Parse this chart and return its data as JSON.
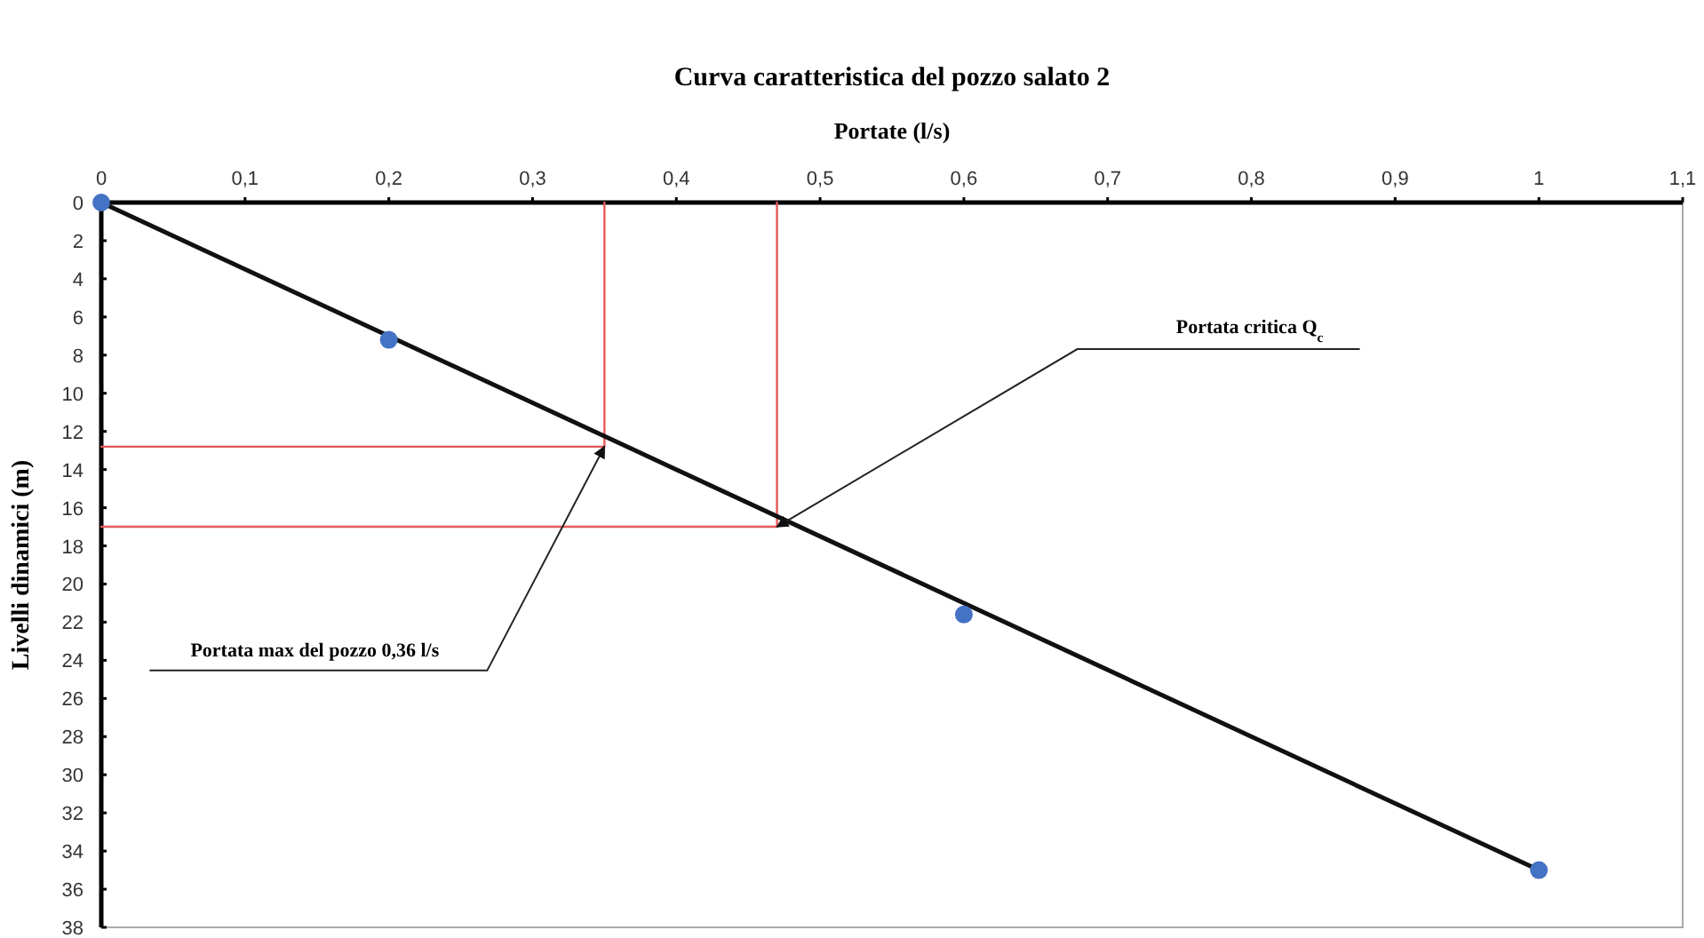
{
  "chart_data": {
    "type": "scatter",
    "title": "Curva caratteristica del pozzo salato 2",
    "xlabel": "Portate (l/s)",
    "ylabel": "Livelli dinamici (m)",
    "xlim": [
      0,
      1.1
    ],
    "xticks": [
      0,
      {
        "value": 0.1,
        "label": "0,1"
      },
      {
        "value": 0.2,
        "label": "0,2"
      },
      {
        "value": 0.3,
        "label": "0,3"
      },
      {
        "value": 0.4,
        "label": "0,4"
      },
      {
        "value": 0.5,
        "label": "0,5"
      },
      {
        "value": 0.6,
        "label": "0,6"
      },
      {
        "value": 0.7,
        "label": "0,7"
      },
      {
        "value": 0.8,
        "label": "0,8"
      },
      {
        "value": 0.9,
        "label": "0,9"
      },
      1,
      {
        "value": 1.1,
        "label": "1,1"
      }
    ],
    "ylim": [
      38,
      0
    ],
    "yticks": [
      0,
      2,
      4,
      6,
      8,
      10,
      12,
      14,
      16,
      18,
      20,
      22,
      24,
      26,
      28,
      30,
      32,
      34,
      36,
      38
    ],
    "grid": false,
    "series": [
      {
        "type": "line",
        "color": "#e8585a",
        "marker": "none",
        "line_style": "solid",
        "x": [
          0,
          0.35,
          0.35
        ],
        "values": [
          12.8,
          12.8,
          0
        ]
      },
      {
        "type": "line",
        "color": "#e8585a",
        "marker": "none",
        "line_style": "solid",
        "x": [
          0,
          0.47,
          0.47
        ],
        "values": [
          17,
          17,
          0
        ]
      },
      {
        "type": "line",
        "color": "#111111",
        "marker": "none",
        "line_style": "solid",
        "x": [
          0,
          1
        ],
        "values": [
          0,
          35
        ]
      },
      {
        "color": "#4472c4",
        "marker": "circle",
        "x": [
          0,
          0.2,
          0.6,
          1
        ],
        "values": [
          0,
          7.2,
          21.6,
          35
        ]
      }
    ],
    "annotations": [
      {
        "text": "Portata critica Q$_{c}$",
        "x": 0.47,
        "y": 17
      },
      {
        "text": "Portata max del pozzo 0,36 l/s",
        "x": 0.35,
        "y": 12.8
      }
    ]
  }
}
